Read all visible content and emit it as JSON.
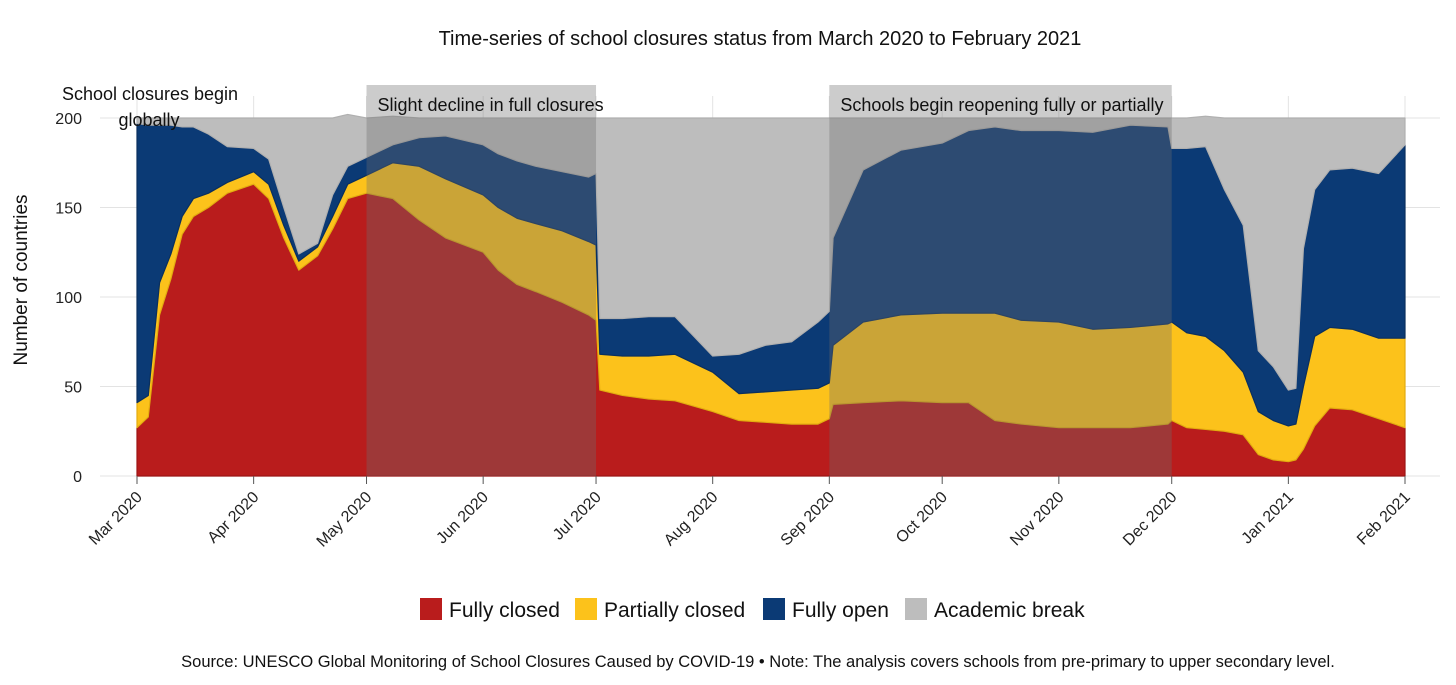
{
  "chart_data": {
    "type": "area",
    "title": "Time-series of school closures status from March 2020 to February 2021",
    "ylabel": "Number of countries",
    "xlabel": "",
    "ylim": [
      0,
      200
    ],
    "yticks": [
      "0",
      "50",
      "100",
      "150",
      "200"
    ],
    "xticks": [
      "Mar 2020",
      "Apr 2020",
      "May 2020",
      "Jun 2020",
      "Jul 2020",
      "Aug 2020",
      "Sep 2020",
      "Oct 2020",
      "Nov 2020",
      "Dec 2020",
      "Jan 2021",
      "Feb 2021"
    ],
    "grid": true,
    "legend_position": "bottom",
    "x": [
      "2020-03-01",
      "2020-03-04",
      "2020-03-07",
      "2020-03-10",
      "2020-03-13",
      "2020-03-16",
      "2020-03-20",
      "2020-03-25",
      "2020-04-01",
      "2020-04-05",
      "2020-04-09",
      "2020-04-13",
      "2020-04-18",
      "2020-04-22",
      "2020-04-26",
      "2020-05-01",
      "2020-05-08",
      "2020-05-15",
      "2020-05-22",
      "2020-06-01",
      "2020-06-05",
      "2020-06-10",
      "2020-06-15",
      "2020-06-22",
      "2020-06-29",
      "2020-07-01",
      "2020-07-02",
      "2020-07-08",
      "2020-07-15",
      "2020-07-22",
      "2020-08-01",
      "2020-08-08",
      "2020-08-15",
      "2020-08-22",
      "2020-08-29",
      "2020-09-01",
      "2020-09-02",
      "2020-09-10",
      "2020-09-20",
      "2020-10-01",
      "2020-10-08",
      "2020-10-15",
      "2020-10-22",
      "2020-11-01",
      "2020-11-10",
      "2020-11-20",
      "2020-11-30",
      "2020-12-01",
      "2020-12-05",
      "2020-12-10",
      "2020-12-15",
      "2020-12-20",
      "2020-12-24",
      "2020-12-28",
      "2021-01-01",
      "2021-01-03",
      "2021-01-05",
      "2021-01-08",
      "2021-01-12",
      "2021-01-18",
      "2021-01-25",
      "2021-02-01"
    ],
    "series": [
      {
        "name": "Fully closed",
        "color": "#b91c1c",
        "values": [
          27,
          33,
          90,
          110,
          135,
          145,
          150,
          158,
          163,
          155,
          133,
          115,
          123,
          138,
          155,
          158,
          155,
          143,
          133,
          125,
          115,
          107,
          103,
          97,
          90,
          87,
          48,
          45,
          43,
          42,
          36,
          31,
          30,
          29,
          29,
          32,
          40,
          41,
          42,
          41,
          41,
          31,
          29,
          27,
          27,
          27,
          29,
          31,
          27,
          26,
          25,
          23,
          12,
          9,
          8,
          9,
          15,
          28,
          38,
          37,
          32,
          27
        ]
      },
      {
        "name": "Partially closed",
        "color": "#fcc21b",
        "values": [
          14,
          12,
          18,
          14,
          10,
          10,
          8,
          6,
          7,
          8,
          7,
          5,
          5,
          7,
          8,
          10,
          20,
          30,
          33,
          32,
          35,
          37,
          38,
          40,
          41,
          42,
          20,
          22,
          24,
          26,
          22,
          15,
          17,
          19,
          20,
          20,
          33,
          45,
          48,
          50,
          50,
          60,
          58,
          59,
          55,
          56,
          56,
          55,
          53,
          52,
          45,
          35,
          24,
          22,
          20,
          20,
          35,
          50,
          45,
          45,
          45,
          50
        ]
      },
      {
        "name": "Fully open",
        "color": "#0b3a75",
        "values": [
          156,
          151,
          88,
          72,
          50,
          40,
          33,
          20,
          13,
          14,
          10,
          4,
          2,
          12,
          10,
          10,
          10,
          16,
          24,
          28,
          30,
          32,
          32,
          33,
          36,
          40,
          20,
          21,
          22,
          21,
          9,
          22,
          26,
          27,
          37,
          40,
          60,
          85,
          92,
          95,
          102,
          104,
          106,
          107,
          110,
          113,
          110,
          97,
          103,
          106,
          90,
          82,
          34,
          30,
          20,
          20,
          77,
          82,
          88,
          90,
          92,
          108
        ]
      },
      {
        "name": "Academic break",
        "color": "#bdbdbd",
        "values": [
          3,
          4,
          4,
          4,
          5,
          5,
          9,
          16,
          17,
          23,
          50,
          76,
          70,
          43,
          29,
          22,
          16,
          11,
          10,
          15,
          20,
          24,
          27,
          30,
          33,
          31,
          112,
          112,
          111,
          111,
          133,
          132,
          127,
          125,
          114,
          108,
          67,
          29,
          18,
          14,
          7,
          5,
          7,
          7,
          8,
          4,
          5,
          17,
          17,
          17,
          40,
          60,
          130,
          139,
          152,
          151,
          73,
          40,
          29,
          28,
          31,
          15
        ]
      }
    ],
    "annotations": [
      {
        "text": "School closures begin",
        "text2": "globally",
        "x_start": "2020-03-01",
        "x_end": "2020-03-01"
      },
      {
        "text": "Slight decline in full closures",
        "x_start": "2020-05-01",
        "x_end": "2020-07-01"
      },
      {
        "text": "Schools begin reopening fully or partially",
        "x_start": "2020-09-01",
        "x_end": "2020-12-01"
      }
    ],
    "source": "Source: UNESCO Global Monitoring of School Closures Caused by COVID-19 • Note: The analysis covers schools from pre-primary to upper secondary level."
  }
}
